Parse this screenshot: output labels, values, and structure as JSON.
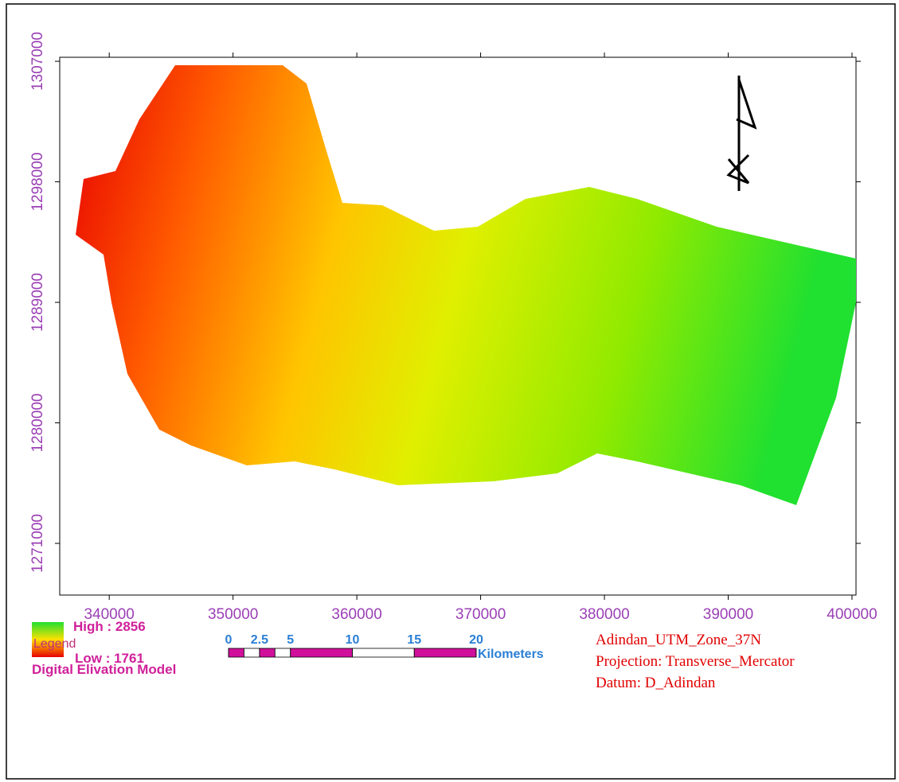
{
  "map": {
    "x_axis": {
      "lim": [
        336000,
        400323
      ],
      "ticks": [
        340000,
        350000,
        360000,
        370000,
        380000,
        390000,
        400000
      ]
    },
    "y_axis": {
      "lim": [
        1267140,
        1307300
      ],
      "ticks": [
        1271000,
        1280000,
        1289000,
        1298000,
        1307000
      ]
    },
    "legend": {
      "heading": "Legend",
      "title": "Digital Elivation Model",
      "high": "High : 2856",
      "low": "Low : 1761"
    },
    "scale_bar": {
      "ticks": [
        0,
        2.5,
        5,
        10,
        15,
        20
      ],
      "unit": "Kilometers"
    },
    "projection": [
      "Adindan_UTM_Zone_37N",
      "Projection: Transverse_Mercator",
      "Datum: D_Adindan"
    ]
  }
}
